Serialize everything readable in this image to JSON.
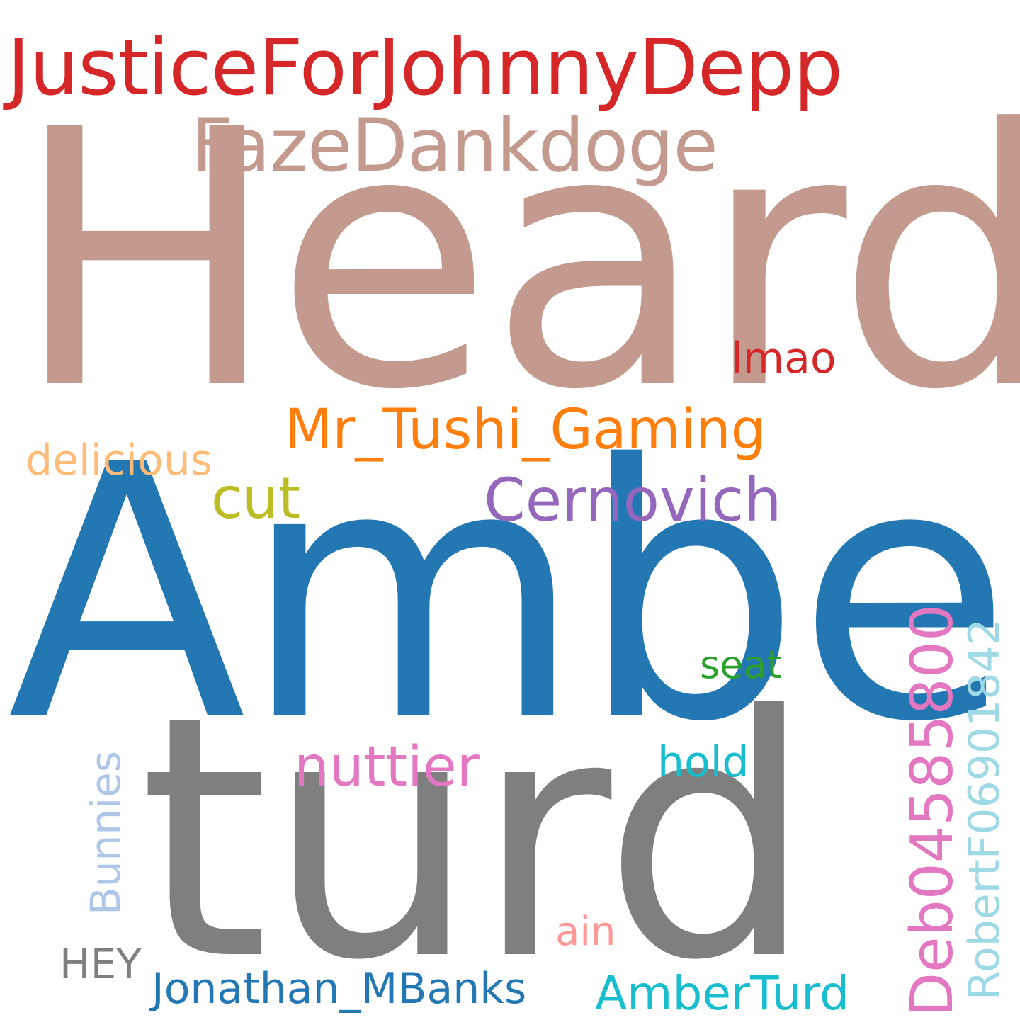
{
  "words": [
    {
      "id": "heard",
      "text": "Heard",
      "color": "#c49a8f",
      "orientation": "horizontal"
    },
    {
      "id": "amber",
      "text": "Amber",
      "color": "#2378b4",
      "orientation": "horizontal"
    },
    {
      "id": "turd",
      "text": "turd",
      "color": "#7f7f7f",
      "orientation": "horizontal"
    },
    {
      "id": "justice",
      "text": "JusticeForJohnnyDepp",
      "color": "#d62728",
      "orientation": "horizontal"
    },
    {
      "id": "faze",
      "text": "FazeDankdoge",
      "color": "#c49a8f",
      "orientation": "horizontal"
    },
    {
      "id": "tushi",
      "text": "Mr_Tushi_Gaming",
      "color": "#ff7f0e",
      "orientation": "horizontal"
    },
    {
      "id": "cernovich",
      "text": "Cernovich",
      "color": "#9467bd",
      "orientation": "horizontal"
    },
    {
      "id": "nuttier",
      "text": "nuttier",
      "color": "#e377c2",
      "orientation": "horizontal"
    },
    {
      "id": "cut",
      "text": "cut",
      "color": "#bcbd22",
      "orientation": "horizontal"
    },
    {
      "id": "delicious",
      "text": "delicious",
      "color": "#ffbb78",
      "orientation": "horizontal"
    },
    {
      "id": "lmao",
      "text": "lmao",
      "color": "#d62728",
      "orientation": "horizontal"
    },
    {
      "id": "seat",
      "text": "seat",
      "color": "#2ca02c",
      "orientation": "horizontal"
    },
    {
      "id": "hold",
      "text": "hold",
      "color": "#17becf",
      "orientation": "horizontal"
    },
    {
      "id": "ain",
      "text": "ain",
      "color": "#ff9896",
      "orientation": "horizontal"
    },
    {
      "id": "hey",
      "text": "HEY",
      "color": "#7f7f7f",
      "orientation": "horizontal"
    },
    {
      "id": "jonathan",
      "text": "Jonathan_MBanks",
      "color": "#2378b4",
      "orientation": "horizontal"
    },
    {
      "id": "amberturd",
      "text": "AmberTurd",
      "color": "#17becf",
      "orientation": "horizontal"
    },
    {
      "id": "deb",
      "text": "Deb04585800",
      "color": "#e377c2",
      "orientation": "vertical"
    },
    {
      "id": "robert",
      "text": "RobertF06901842",
      "color": "#9edae5",
      "orientation": "vertical"
    },
    {
      "id": "bunnies",
      "text": "Bunnies",
      "color": "#aec7e8",
      "orientation": "vertical"
    }
  ]
}
